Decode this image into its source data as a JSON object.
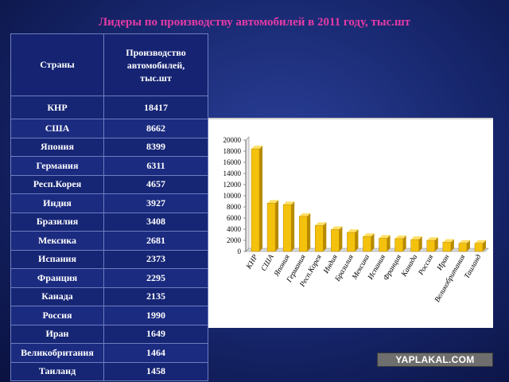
{
  "title": "Лидеры по производству автомобилей в 2011 году, тыс.шт",
  "table": {
    "headers": [
      "Страны",
      "Производство\nавтомобилей,\nтыс.шт"
    ],
    "rows": [
      [
        "КНР",
        "18417"
      ],
      [
        "США",
        "8662"
      ],
      [
        "Япония",
        "8399"
      ],
      [
        "Германия",
        "6311"
      ],
      [
        "Респ.Корея",
        "4657"
      ],
      [
        "Индия",
        "3927"
      ],
      [
        "Бразилия",
        "3408"
      ],
      [
        "Мексика",
        "2681"
      ],
      [
        "Испания",
        "2373"
      ],
      [
        "Франция",
        "2295"
      ],
      [
        "Канада",
        "2135"
      ],
      [
        "Россия",
        "1990"
      ],
      [
        "Иран",
        "1649"
      ],
      [
        "Великобритания",
        "1464"
      ],
      [
        "Таиланд",
        "1458"
      ]
    ]
  },
  "chart_data": {
    "type": "bar",
    "categories": [
      "КНР",
      "США",
      "Япония",
      "Германия",
      "Респ.Корея",
      "Индия",
      "Бразилия",
      "Мексика",
      "Испания",
      "Франция",
      "Канада",
      "Россия",
      "Иран",
      "Великобритания",
      "Таиланд"
    ],
    "values": [
      18417,
      8662,
      8399,
      6311,
      4657,
      3927,
      3408,
      2681,
      2373,
      2295,
      2135,
      1990,
      1649,
      1464,
      1458
    ],
    "yticks": [
      "0",
      "2000",
      "4000",
      "6000",
      "8000",
      "10000",
      "12000",
      "14000",
      "16000",
      "18000",
      "20000"
    ],
    "ylim": [
      0,
      20000
    ],
    "bar_color": "#f4c20d",
    "bar_color_dark": "#b88a00",
    "title": "",
    "xlabel": "",
    "ylabel": ""
  },
  "watermark": "YAPLAKAL.COM"
}
